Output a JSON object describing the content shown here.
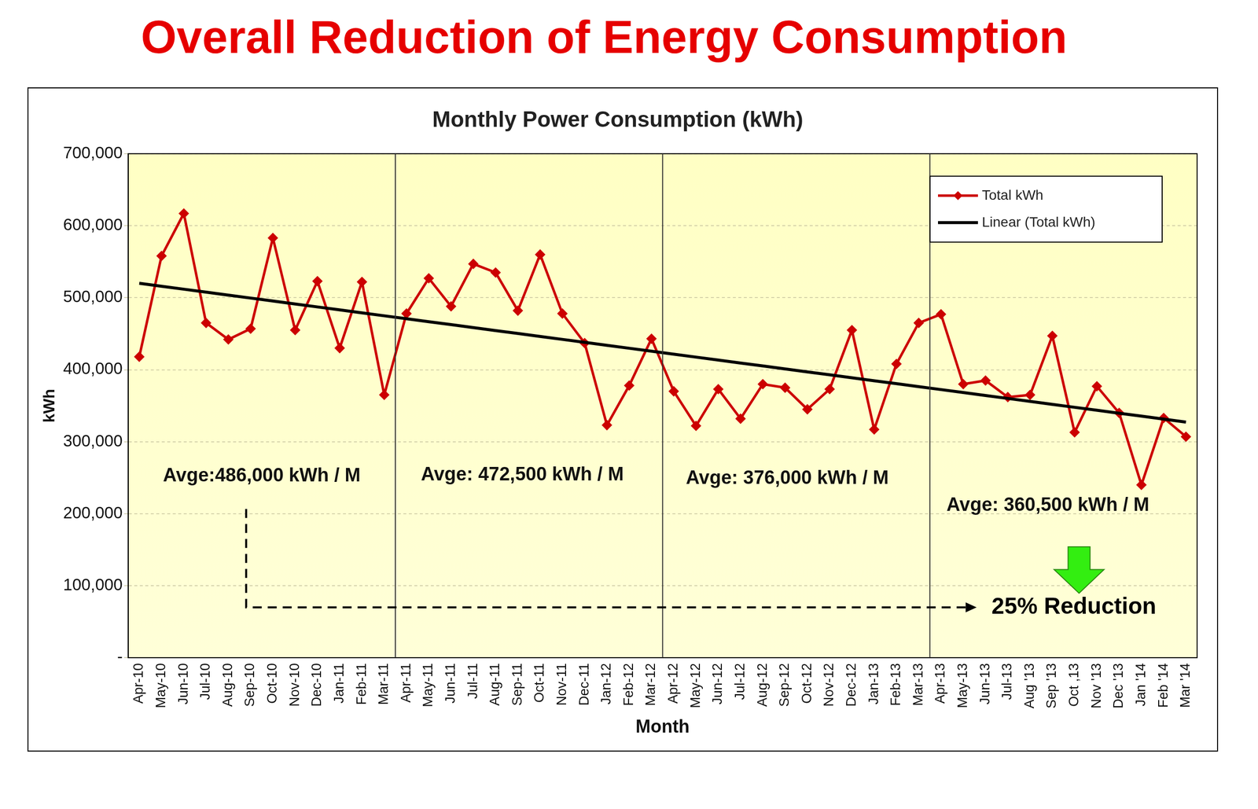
{
  "chart_data": {
    "type": "line",
    "title": "Overall Reduction of Energy Consumption",
    "subtitle": "Monthly Power Consumption (kWh)",
    "x_label": "Month",
    "y_label": "kWh",
    "categories": [
      "Apr-10",
      "May-10",
      "Jun-10",
      "Jul-10",
      "Aug-10",
      "Sep-10",
      "Oct-10",
      "Nov-10",
      "Dec-10",
      "Jan-11",
      "Feb-11",
      "Mar-11",
      "Apr-11",
      "May-11",
      "Jun-11",
      "Jul-11",
      "Aug-11",
      "Sep-11",
      "Oct-11",
      "Nov-11",
      "Dec-11",
      "Jan-12",
      "Feb-12",
      "Mar-12",
      "Apr-12",
      "May-12",
      "Jun-12",
      "Jul-12",
      "Aug-12",
      "Sep-12",
      "Oct-12",
      "Nov-12",
      "Dec-12",
      "Jan-13",
      "Feb-13",
      "Mar-13",
      "Apr-13",
      "May-13",
      "Jun-13",
      "Jul-13",
      "Aug '13",
      "Sep '13",
      "Oct ,13",
      "Nov '13",
      "Dec '13",
      "Jan '14",
      "Feb '14",
      "Mar '14"
    ],
    "series": [
      {
        "name": "Total kWh",
        "color": "#cc0000",
        "marker": "diamond",
        "line_style": "solid",
        "values": [
          418000,
          558000,
          617000,
          465000,
          442000,
          457000,
          583000,
          455000,
          523000,
          430000,
          522000,
          365000,
          478000,
          527000,
          488000,
          547000,
          535000,
          482000,
          560000,
          478000,
          437000,
          323000,
          378000,
          443000,
          370000,
          322000,
          373000,
          332000,
          380000,
          375000,
          345000,
          373000,
          455000,
          317000,
          408000,
          465000,
          477000,
          380000,
          385000,
          362000,
          365000,
          447000,
          313000,
          377000,
          340000,
          240000,
          333000,
          307000
        ]
      },
      {
        "name": "Linear (Total kWh)",
        "color": "#000000",
        "line_style": "solid",
        "values": [
          520000,
          515900,
          511800,
          507700,
          503600,
          499500,
          495400,
          491300,
          487200,
          483100,
          479000,
          474900,
          470800,
          466700,
          462600,
          458500,
          454400,
          450300,
          446200,
          442100,
          438000,
          433900,
          429800,
          425700,
          421600,
          417500,
          413400,
          409300,
          405200,
          401100,
          397000,
          392900,
          388800,
          384700,
          380600,
          376500,
          372400,
          368300,
          364200,
          360100,
          356000,
          351900,
          347800,
          343700,
          339600,
          335500,
          331400,
          327300
        ]
      }
    ],
    "ylim": [
      0,
      700000
    ],
    "yticks": [
      {
        "value": 0,
        "label": "-"
      },
      {
        "value": 100000,
        "label": "100,000"
      },
      {
        "value": 200000,
        "label": "200,000"
      },
      {
        "value": 300000,
        "label": "300,000"
      },
      {
        "value": 400000,
        "label": "400,000"
      },
      {
        "value": 500000,
        "label": "500,000"
      },
      {
        "value": 600000,
        "label": "600,000"
      },
      {
        "value": 700000,
        "label": "700,000"
      }
    ],
    "annotations": [
      "Avge:486,000 kWh / M",
      "Avge: 472,500 kWh / M",
      "Avge: 376,000 kWh / M",
      "Avge: 360,500 kWh / M",
      "25% Reduction"
    ],
    "grid": true,
    "legend": "upper right",
    "data_labels": false
  }
}
